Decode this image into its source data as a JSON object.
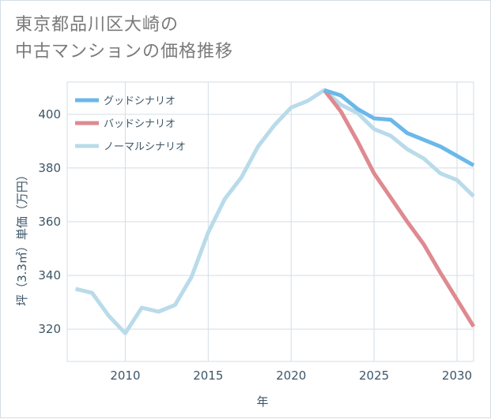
{
  "title": {
    "line1": "東京都品川区大崎の",
    "line2": "中古マンションの価格推移"
  },
  "chart_data": {
    "type": "line",
    "xlabel": "年",
    "ylabel": "坪（3.3㎡）単価（万円）",
    "xlim": [
      2006.5,
      2031
    ],
    "ylim": [
      308,
      412
    ],
    "xticks": [
      2010,
      2015,
      2020,
      2025,
      2030
    ],
    "yticks": [
      320,
      340,
      360,
      380,
      400
    ],
    "grid": true,
    "legend_position": "top-left",
    "series": [
      {
        "name": "グッドシナリオ",
        "color": "#6bb8ea",
        "x": [
          2022,
          2023,
          2024,
          2025,
          2026,
          2027,
          2028,
          2029,
          2030,
          2031
        ],
        "y": [
          409,
          407,
          402,
          398.5,
          398,
          393,
          390.5,
          388,
          384.5,
          381
        ]
      },
      {
        "name": "バッドシナリオ",
        "color": "#de8a90",
        "x": [
          2022,
          2023,
          2024,
          2025,
          2026,
          2027,
          2028,
          2029,
          2030,
          2031
        ],
        "y": [
          409,
          401,
          390,
          378,
          369,
          360,
          351.5,
          341,
          331,
          321
        ]
      },
      {
        "name": "ノーマルシナリオ",
        "color": "#b9dbea",
        "x": [
          2007,
          2008,
          2009,
          2010,
          2011,
          2012,
          2013,
          2014,
          2015,
          2016,
          2017,
          2018,
          2019,
          2020,
          2021,
          2022,
          2023,
          2024,
          2025,
          2026,
          2027,
          2028,
          2029,
          2030,
          2031
        ],
        "y": [
          335,
          333.5,
          325,
          318.5,
          328,
          326.5,
          329,
          339.5,
          356,
          368.5,
          376.5,
          388,
          396,
          402.5,
          405,
          409,
          403.5,
          400.5,
          394.5,
          392,
          387,
          383.5,
          378,
          375.5,
          369.5
        ]
      }
    ]
  }
}
